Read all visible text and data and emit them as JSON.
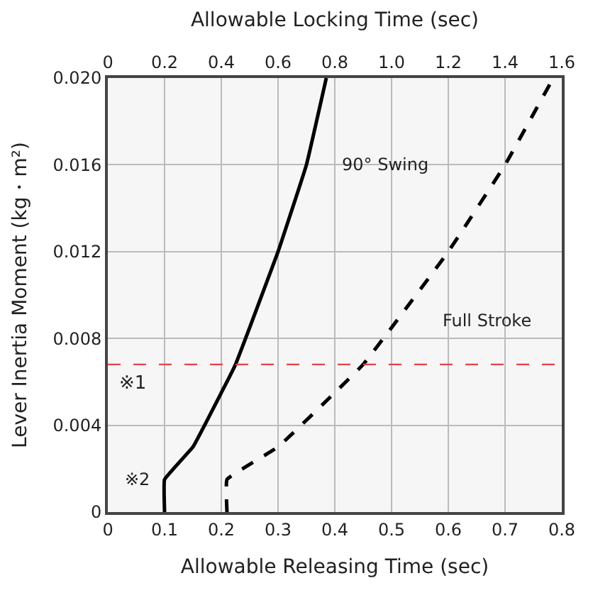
{
  "chart_data": {
    "type": "line",
    "xlabel": "Allowable Releasing Time (sec)",
    "x2label": "Allowable Locking Time (sec)",
    "ylabel": "Lever Inertia Moment (kg・m²)",
    "xlim": [
      0,
      0.8
    ],
    "xticks": [
      0,
      0.1,
      0.2,
      0.3,
      0.4,
      0.5,
      0.6,
      0.7,
      0.8
    ],
    "x2lim": [
      0,
      1.6
    ],
    "x2ticks": [
      0,
      0.2,
      0.4,
      0.6,
      {
        "value": 0.8,
        "label": "0.8"
      },
      {
        "value": 1.0,
        "label": "1.0"
      },
      1.2,
      1.4,
      1.6
    ],
    "ylim": [
      0,
      0.02
    ],
    "yticks": [
      0,
      0.004,
      0.008,
      0.012,
      0.016,
      {
        "value": 0.02,
        "label": "0.020"
      }
    ],
    "grid": true,
    "marker": "none",
    "series": [
      {
        "color": "#000000",
        "line_style": "solid",
        "x": [
          0.1,
          0.1,
          0.15,
          0.2,
          0.225,
          0.25,
          0.3,
          0.35,
          0.385
        ],
        "values": [
          0,
          0.0015,
          0.003,
          0.0055,
          0.0068,
          0.0085,
          0.012,
          0.016,
          0.02
        ]
      },
      {
        "color": "#000000",
        "line_style": "dashed",
        "x": [
          0.21,
          0.21,
          0.3,
          0.4,
          0.45,
          0.5,
          0.6,
          0.7,
          0.785
        ],
        "values": [
          0,
          0.0015,
          0.003,
          0.0055,
          0.0068,
          0.0085,
          0.012,
          0.016,
          0.02
        ]
      }
    ],
    "ref_lines": [
      {
        "axis": "y",
        "value": 0.0068,
        "label": "※1",
        "color": "#e8424a",
        "line_style": "dashed"
      }
    ],
    "annotations": [
      "90° Swing",
      "Full Stroke",
      "※2"
    ]
  }
}
